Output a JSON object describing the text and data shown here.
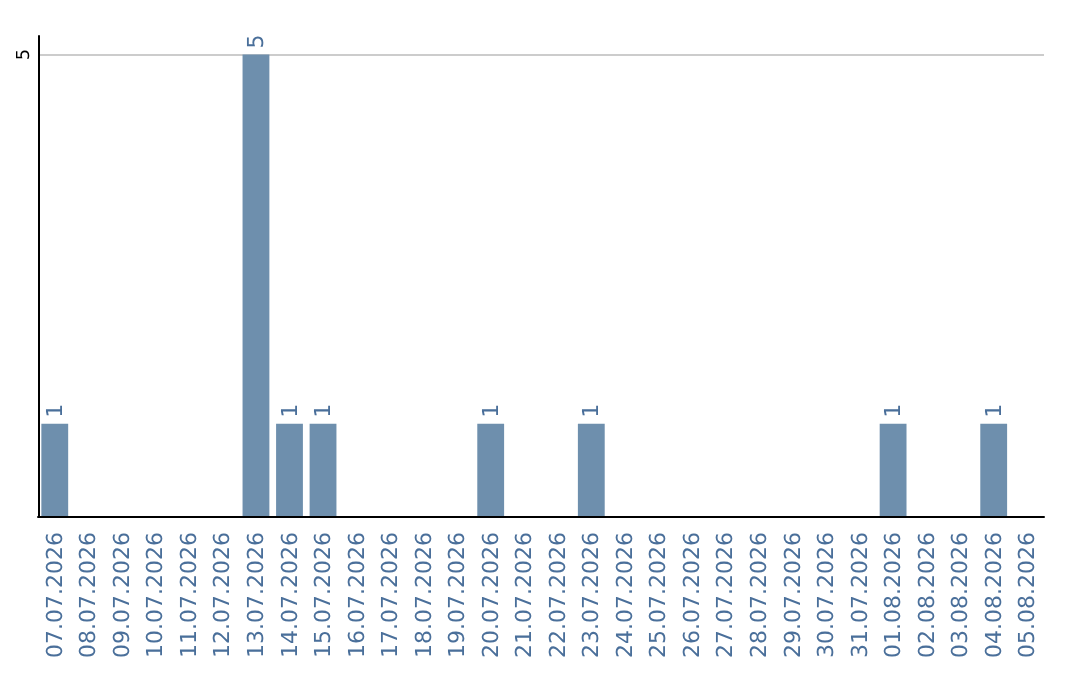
{
  "chart_data": {
    "type": "bar",
    "categories": [
      "07.07.2026",
      "08.07.2026",
      "09.07.2026",
      "10.07.2026",
      "11.07.2026",
      "12.07.2026",
      "13.07.2026",
      "14.07.2026",
      "15.07.2026",
      "16.07.2026",
      "17.07.2026",
      "18.07.2026",
      "19.07.2026",
      "20.07.2026",
      "21.07.2026",
      "22.07.2026",
      "23.07.2026",
      "24.07.2026",
      "25.07.2026",
      "26.07.2026",
      "27.07.2026",
      "28.07.2026",
      "29.07.2026",
      "30.07.2026",
      "31.07.2026",
      "01.08.2026",
      "02.08.2026",
      "03.08.2026",
      "04.08.2026",
      "05.08.2026"
    ],
    "values": [
      1,
      0,
      0,
      0,
      0,
      0,
      5,
      1,
      1,
      0,
      0,
      0,
      0,
      1,
      0,
      0,
      1,
      0,
      0,
      0,
      0,
      0,
      0,
      0,
      0,
      1,
      0,
      0,
      1,
      0
    ],
    "value_labels": [
      "1",
      null,
      null,
      null,
      null,
      null,
      "5",
      "1",
      "1",
      null,
      null,
      null,
      null,
      "1",
      null,
      null,
      "1",
      null,
      null,
      null,
      null,
      null,
      null,
      null,
      null,
      "1",
      null,
      null,
      "1",
      null
    ],
    "color": "#6e8fad",
    "ylim": [
      0,
      5.2
    ],
    "yticks": [
      5
    ],
    "grid": "y"
  }
}
